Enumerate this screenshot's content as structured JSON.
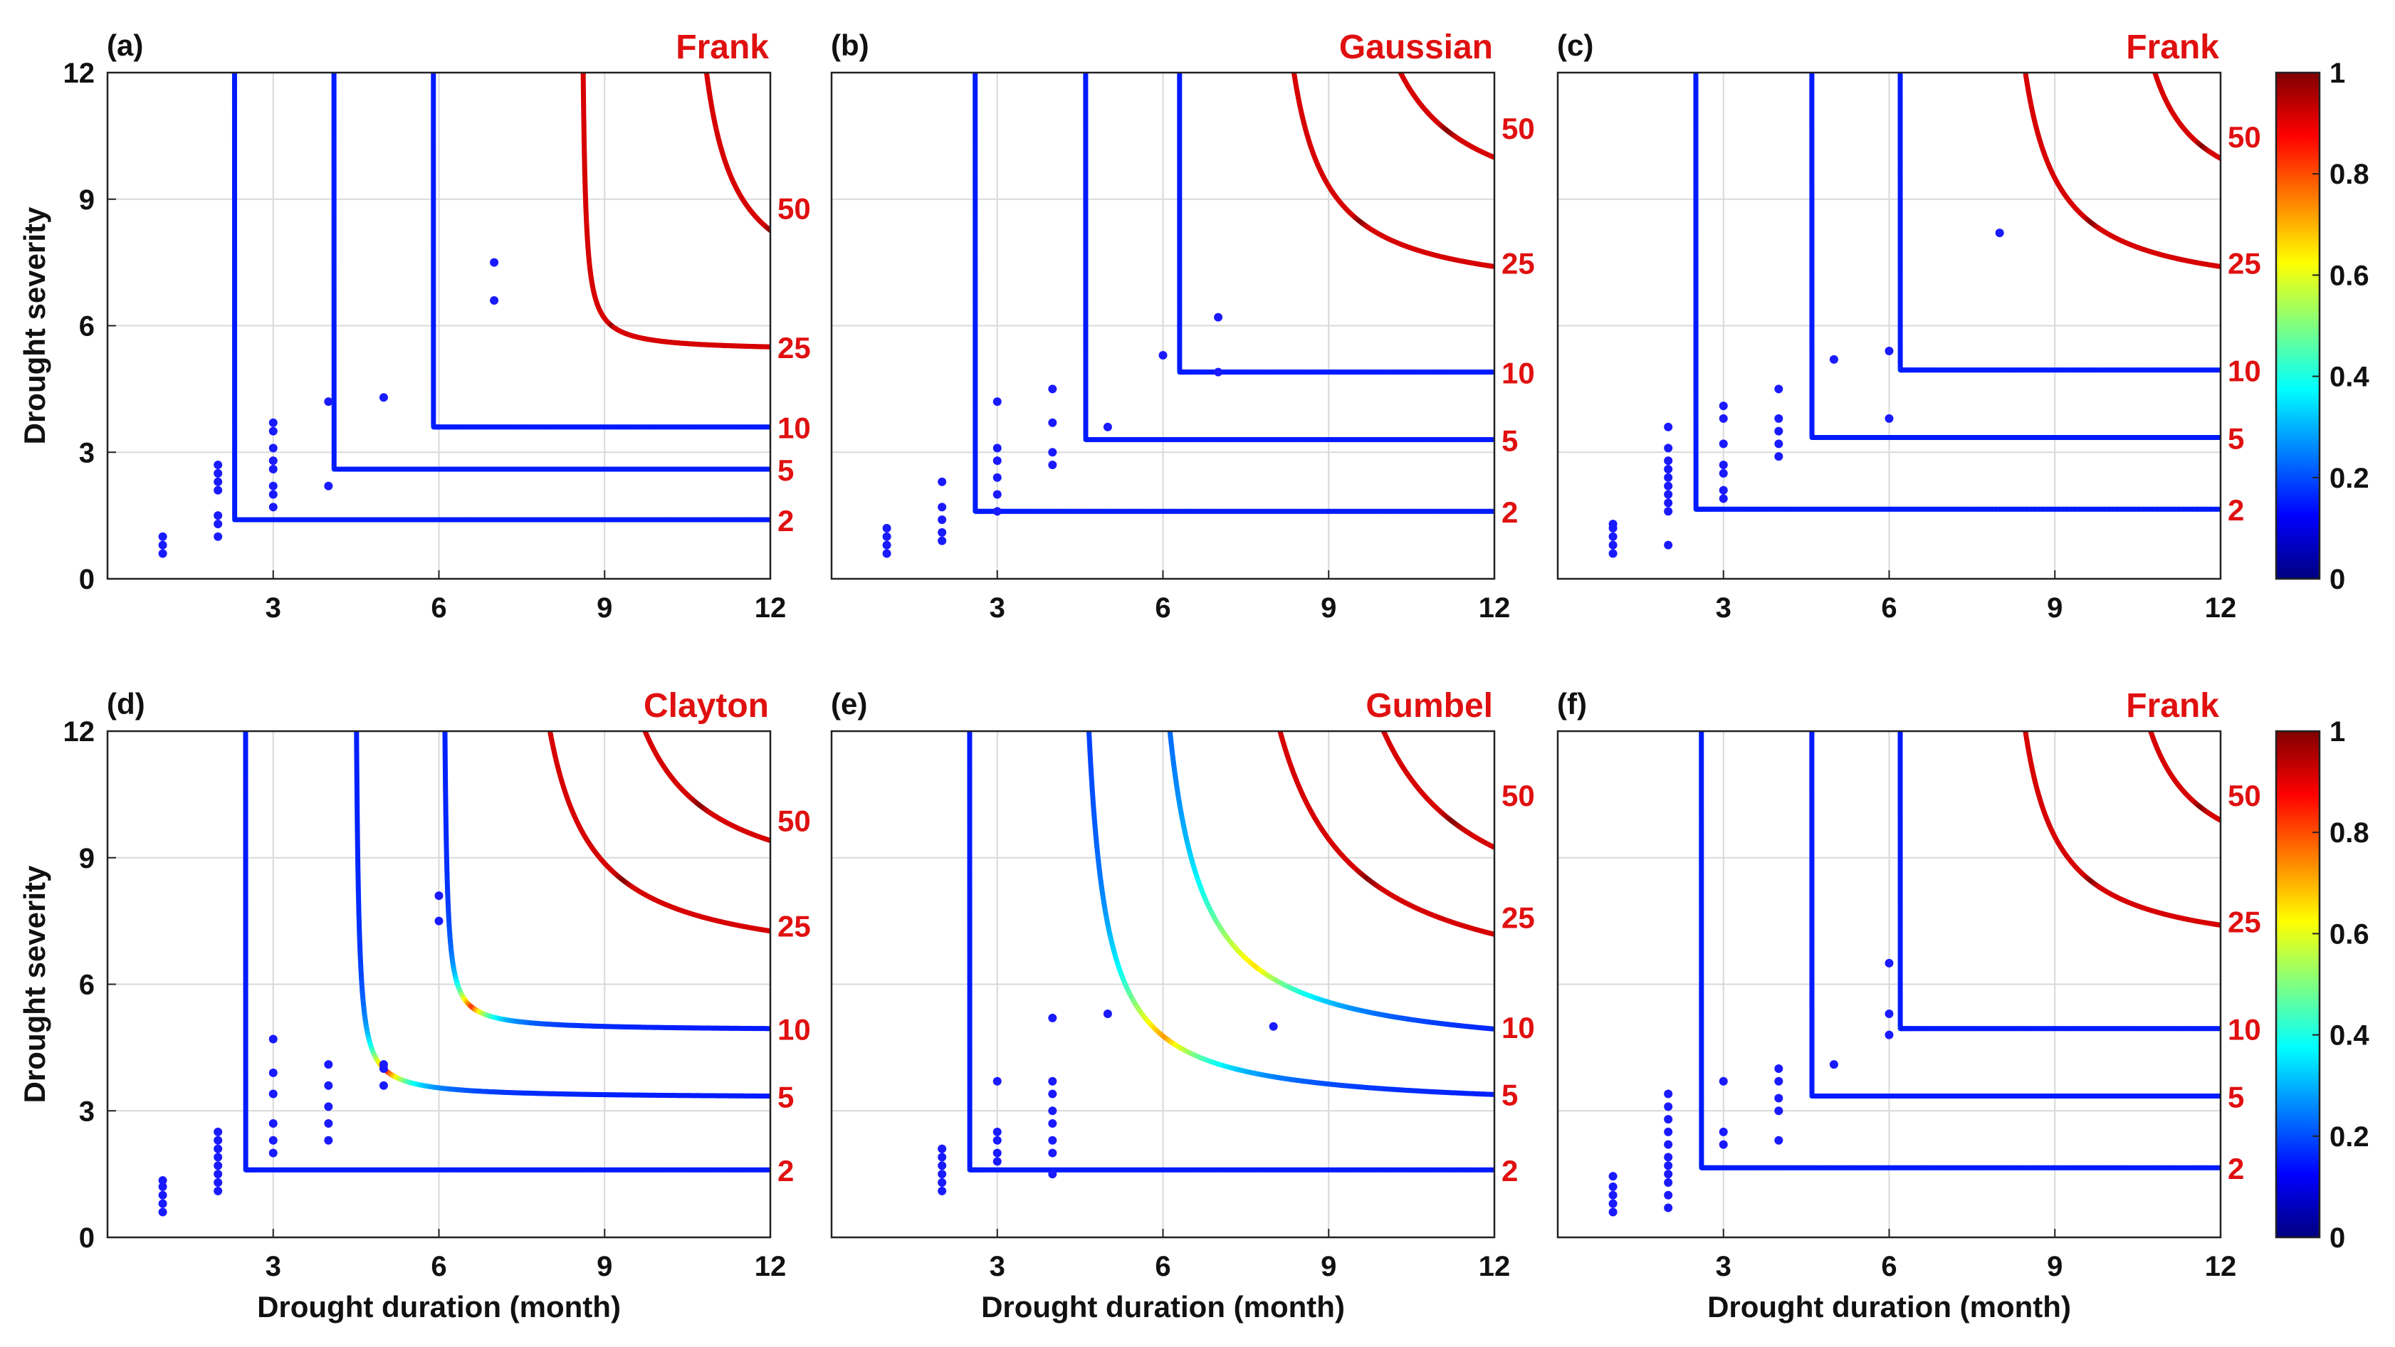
{
  "colors": {
    "copula_label": "#e01010",
    "return_period_label": "#e01010",
    "observed_points": "#1a1aff",
    "grid": "#d9d9d9",
    "colormap": "jet"
  },
  "colorbar": {
    "ticks": [
      "0",
      "0.2",
      "0.4",
      "0.6",
      "0.8",
      "1"
    ],
    "range": [
      0,
      1
    ]
  },
  "chart_data": [
    {
      "type": "scatter",
      "panel_label": "(a)",
      "copula": "Frank",
      "xlabel": "",
      "ylabel": "Drought severity",
      "xticks": [
        "3",
        "6",
        "9",
        "12"
      ],
      "yticks": [
        "0",
        "3",
        "6",
        "9",
        "12"
      ],
      "xlim": [
        0,
        12
      ],
      "ylim": [
        0,
        12
      ],
      "grid": true,
      "return_periods": [
        {
          "label": "2",
          "vx": 2.3,
          "hy": 1.4,
          "y_end": 1.4,
          "sharp": 80
        },
        {
          "label": "5",
          "vx": 4.1,
          "hy": 2.6,
          "y_end": 2.6,
          "sharp": 40
        },
        {
          "label": "10",
          "vx": 5.9,
          "hy": 3.6,
          "y_end": 3.6,
          "sharp": 6
        },
        {
          "label": "25",
          "vx": 8.6,
          "hy": 5.4,
          "y_end": 5.5,
          "sharp": 0.9
        },
        {
          "label": "50",
          "vx": 10.7,
          "hy": 6.5,
          "y_end": 8.8,
          "sharp": 0.25
        }
      ],
      "points": [
        [
          1,
          0.6
        ],
        [
          1,
          0.8
        ],
        [
          1,
          1.0
        ],
        [
          2,
          1.0
        ],
        [
          2,
          1.3
        ],
        [
          2,
          1.5
        ],
        [
          2,
          2.1
        ],
        [
          2,
          2.3
        ],
        [
          2,
          2.5
        ],
        [
          2,
          2.7
        ],
        [
          3,
          1.7
        ],
        [
          3,
          2.0
        ],
        [
          3,
          2.2
        ],
        [
          3,
          2.6
        ],
        [
          3,
          2.8
        ],
        [
          3,
          3.1
        ],
        [
          3,
          3.5
        ],
        [
          3,
          3.7
        ],
        [
          4,
          2.2
        ],
        [
          4,
          4.2
        ],
        [
          5,
          4.3
        ],
        [
          7,
          6.6
        ],
        [
          7,
          7.5
        ]
      ]
    },
    {
      "type": "scatter",
      "panel_label": "(b)",
      "copula": "Gaussian",
      "xlabel": "",
      "ylabel": "",
      "xticks": [
        "3",
        "6",
        "9",
        "12"
      ],
      "yticks": [],
      "xlim": [
        0,
        12
      ],
      "ylim": [
        0,
        12
      ],
      "grid": true,
      "return_periods": [
        {
          "label": "2",
          "vx": 2.6,
          "hy": 1.6,
          "y_end": 1.6,
          "sharp": 1.5
        },
        {
          "label": "5",
          "vx": 4.6,
          "hy": 3.3,
          "y_end": 3.3,
          "sharp": 0.9
        },
        {
          "label": "10",
          "vx": 6.3,
          "hy": 4.9,
          "y_end": 4.9,
          "sharp": 0.8
        },
        {
          "label": "25",
          "vx": 8.2,
          "hy": 6.6,
          "y_end": 7.5,
          "sharp": 0.3
        },
        {
          "label": "50",
          "vx": 9.8,
          "hy": 8.3,
          "y_end": 10.7,
          "sharp": 0.3
        }
      ],
      "points": [
        [
          1,
          0.6
        ],
        [
          1,
          0.8
        ],
        [
          1,
          1.0
        ],
        [
          1,
          1.2
        ],
        [
          2,
          0.9
        ],
        [
          2,
          1.1
        ],
        [
          2,
          1.4
        ],
        [
          2,
          1.7
        ],
        [
          2,
          2.3
        ],
        [
          3,
          1.6
        ],
        [
          3,
          2.0
        ],
        [
          3,
          2.4
        ],
        [
          3,
          2.8
        ],
        [
          3,
          3.1
        ],
        [
          3,
          4.2
        ],
        [
          4,
          2.7
        ],
        [
          4,
          3.0
        ],
        [
          4,
          3.7
        ],
        [
          4,
          4.5
        ],
        [
          5,
          3.6
        ],
        [
          6,
          5.3
        ],
        [
          7,
          4.9
        ],
        [
          7,
          6.2
        ]
      ]
    },
    {
      "type": "scatter",
      "panel_label": "(c)",
      "copula": "Frank",
      "xlabel": "",
      "ylabel": "",
      "xticks": [
        "3",
        "6",
        "9",
        "12"
      ],
      "yticks": [],
      "xlim": [
        0,
        12
      ],
      "ylim": [
        0,
        12
      ],
      "grid": true,
      "return_periods": [
        {
          "label": "2",
          "vx": 2.5,
          "hy": 1.65,
          "y_end": 1.65,
          "sharp": 4
        },
        {
          "label": "5",
          "vx": 4.6,
          "hy": 3.35,
          "y_end": 3.35,
          "sharp": 2
        },
        {
          "label": "10",
          "vx": 6.2,
          "hy": 4.95,
          "y_end": 4.95,
          "sharp": 1
        },
        {
          "label": "25",
          "vx": 8.3,
          "hy": 6.6,
          "y_end": 7.5,
          "sharp": 0.3
        },
        {
          "label": "50",
          "vx": 10.5,
          "hy": 8.5,
          "y_end": 10.5,
          "sharp": 0.3
        }
      ],
      "points": [
        [
          1,
          0.6
        ],
        [
          1,
          0.8
        ],
        [
          1,
          1.0
        ],
        [
          1,
          1.2
        ],
        [
          1,
          1.3
        ],
        [
          2,
          0.8
        ],
        [
          2,
          1.6
        ],
        [
          2,
          1.8
        ],
        [
          2,
          2.0
        ],
        [
          2,
          2.2
        ],
        [
          2,
          2.4
        ],
        [
          2,
          2.6
        ],
        [
          2,
          2.8
        ],
        [
          2,
          3.1
        ],
        [
          2,
          3.6
        ],
        [
          3,
          1.9
        ],
        [
          3,
          2.1
        ],
        [
          3,
          2.5
        ],
        [
          3,
          2.7
        ],
        [
          3,
          3.2
        ],
        [
          3,
          3.8
        ],
        [
          3,
          4.1
        ],
        [
          4,
          2.9
        ],
        [
          4,
          3.2
        ],
        [
          4,
          3.5
        ],
        [
          4,
          3.8
        ],
        [
          4,
          4.5
        ],
        [
          5,
          5.2
        ],
        [
          6,
          3.8
        ],
        [
          6,
          5.4
        ],
        [
          8,
          8.2
        ]
      ]
    },
    {
      "type": "scatter",
      "panel_label": "(d)",
      "copula": "Clayton",
      "xlabel": "Drought duration (month)",
      "ylabel": "Drought severity",
      "xticks": [
        "3",
        "6",
        "9",
        "12"
      ],
      "yticks": [
        "0",
        "3",
        "6",
        "9",
        "12"
      ],
      "xlim": [
        0,
        12
      ],
      "ylim": [
        0,
        12
      ],
      "grid": true,
      "return_periods": [
        {
          "label": "2",
          "vx": 2.5,
          "hy": 1.6,
          "y_end": 1.6,
          "sharp": 0.4
        },
        {
          "label": "5",
          "vx": 4.5,
          "hy": 3.3,
          "y_end": 3.35,
          "sharp": 0.8
        },
        {
          "label": "10",
          "vx": 6.1,
          "hy": 4.9,
          "y_end": 4.95,
          "sharp": 0.6
        },
        {
          "label": "25",
          "vx": 7.8,
          "hy": 6.3,
          "y_end": 7.4,
          "sharp": 0.4
        },
        {
          "label": "50",
          "vx": 9.3,
          "hy": 7.9,
          "y_end": 9.9,
          "sharp": 0.4
        }
      ],
      "points": [
        [
          1,
          0.6
        ],
        [
          1,
          0.8
        ],
        [
          1,
          1.0
        ],
        [
          1,
          1.2
        ],
        [
          1,
          1.35
        ],
        [
          2,
          1.1
        ],
        [
          2,
          1.3
        ],
        [
          2,
          1.5
        ],
        [
          2,
          1.7
        ],
        [
          2,
          1.9
        ],
        [
          2,
          2.1
        ],
        [
          2,
          2.3
        ],
        [
          2,
          2.5
        ],
        [
          3,
          2.0
        ],
        [
          3,
          2.3
        ],
        [
          3,
          2.7
        ],
        [
          3,
          3.4
        ],
        [
          3,
          3.9
        ],
        [
          3,
          4.7
        ],
        [
          4,
          2.3
        ],
        [
          4,
          2.7
        ],
        [
          4,
          3.1
        ],
        [
          4,
          3.6
        ],
        [
          4,
          4.1
        ],
        [
          5,
          3.6
        ],
        [
          5,
          4.0
        ],
        [
          5,
          4.1
        ],
        [
          6,
          7.5
        ],
        [
          6,
          8.1
        ]
      ]
    },
    {
      "type": "scatter",
      "panel_label": "(e)",
      "copula": "Gumbel",
      "xlabel": "Drought duration (month)",
      "ylabel": "",
      "xticks": [
        "3",
        "6",
        "9",
        "12"
      ],
      "yticks": [],
      "xlim": [
        0,
        12
      ],
      "ylim": [
        0,
        12
      ],
      "grid": true,
      "return_periods": [
        {
          "label": "2",
          "vx": 2.5,
          "hy": 1.6,
          "y_end": 1.6,
          "sharp": 0.4
        },
        {
          "label": "5",
          "vx": 4.6,
          "hy": 3.0,
          "y_end": 3.4,
          "sharp": 0.35
        },
        {
          "label": "10",
          "vx": 6.0,
          "hy": 4.2,
          "y_end": 5.0,
          "sharp": 0.3
        },
        {
          "label": "25",
          "vx": 7.8,
          "hy": 5.5,
          "y_end": 7.6,
          "sharp": 0.3
        },
        {
          "label": "50",
          "vx": 9.5,
          "hy": 6.8,
          "y_end": 10.5,
          "sharp": 0.3
        }
      ],
      "points": [
        [
          2,
          1.1
        ],
        [
          2,
          1.3
        ],
        [
          2,
          1.5
        ],
        [
          2,
          1.7
        ],
        [
          2,
          1.9
        ],
        [
          2,
          2.1
        ],
        [
          3,
          1.8
        ],
        [
          3,
          2.0
        ],
        [
          3,
          2.3
        ],
        [
          3,
          2.5
        ],
        [
          3,
          3.7
        ],
        [
          4,
          1.5
        ],
        [
          4,
          2.0
        ],
        [
          4,
          2.3
        ],
        [
          4,
          2.7
        ],
        [
          4,
          3.0
        ],
        [
          4,
          3.4
        ],
        [
          4,
          3.7
        ],
        [
          4,
          5.2
        ],
        [
          5,
          5.3
        ],
        [
          8,
          5.0
        ]
      ]
    },
    {
      "type": "scatter",
      "panel_label": "(f)",
      "copula": "Frank",
      "xlabel": "Drought duration (month)",
      "ylabel": "",
      "xticks": [
        "3",
        "6",
        "9",
        "12"
      ],
      "yticks": [],
      "xlim": [
        0,
        12
      ],
      "ylim": [
        0,
        12
      ],
      "grid": true,
      "return_periods": [
        {
          "label": "2",
          "vx": 2.6,
          "hy": 1.65,
          "y_end": 1.65,
          "sharp": 2
        },
        {
          "label": "5",
          "vx": 4.6,
          "hy": 3.35,
          "y_end": 3.35,
          "sharp": 0.9
        },
        {
          "label": "10",
          "vx": 6.2,
          "hy": 4.95,
          "y_end": 4.95,
          "sharp": 0.7
        },
        {
          "label": "25",
          "vx": 8.3,
          "hy": 6.6,
          "y_end": 7.5,
          "sharp": 0.3
        },
        {
          "label": "50",
          "vx": 10.4,
          "hy": 8.3,
          "y_end": 10.5,
          "sharp": 0.3
        }
      ],
      "points": [
        [
          1,
          0.6
        ],
        [
          1,
          0.8
        ],
        [
          1,
          1.0
        ],
        [
          1,
          1.2
        ],
        [
          1,
          1.45
        ],
        [
          2,
          0.7
        ],
        [
          2,
          1.0
        ],
        [
          2,
          1.3
        ],
        [
          2,
          1.5
        ],
        [
          2,
          1.7
        ],
        [
          2,
          1.9
        ],
        [
          2,
          2.2
        ],
        [
          2,
          2.5
        ],
        [
          2,
          2.8
        ],
        [
          2,
          3.1
        ],
        [
          2,
          3.4
        ],
        [
          3,
          2.2
        ],
        [
          3,
          2.5
        ],
        [
          3,
          3.7
        ],
        [
          4,
          2.3
        ],
        [
          4,
          3.0
        ],
        [
          4,
          3.3
        ],
        [
          4,
          3.7
        ],
        [
          4,
          4.0
        ],
        [
          5,
          4.1
        ],
        [
          6,
          4.8
        ],
        [
          6,
          5.3
        ],
        [
          6,
          6.5
        ]
      ]
    }
  ]
}
